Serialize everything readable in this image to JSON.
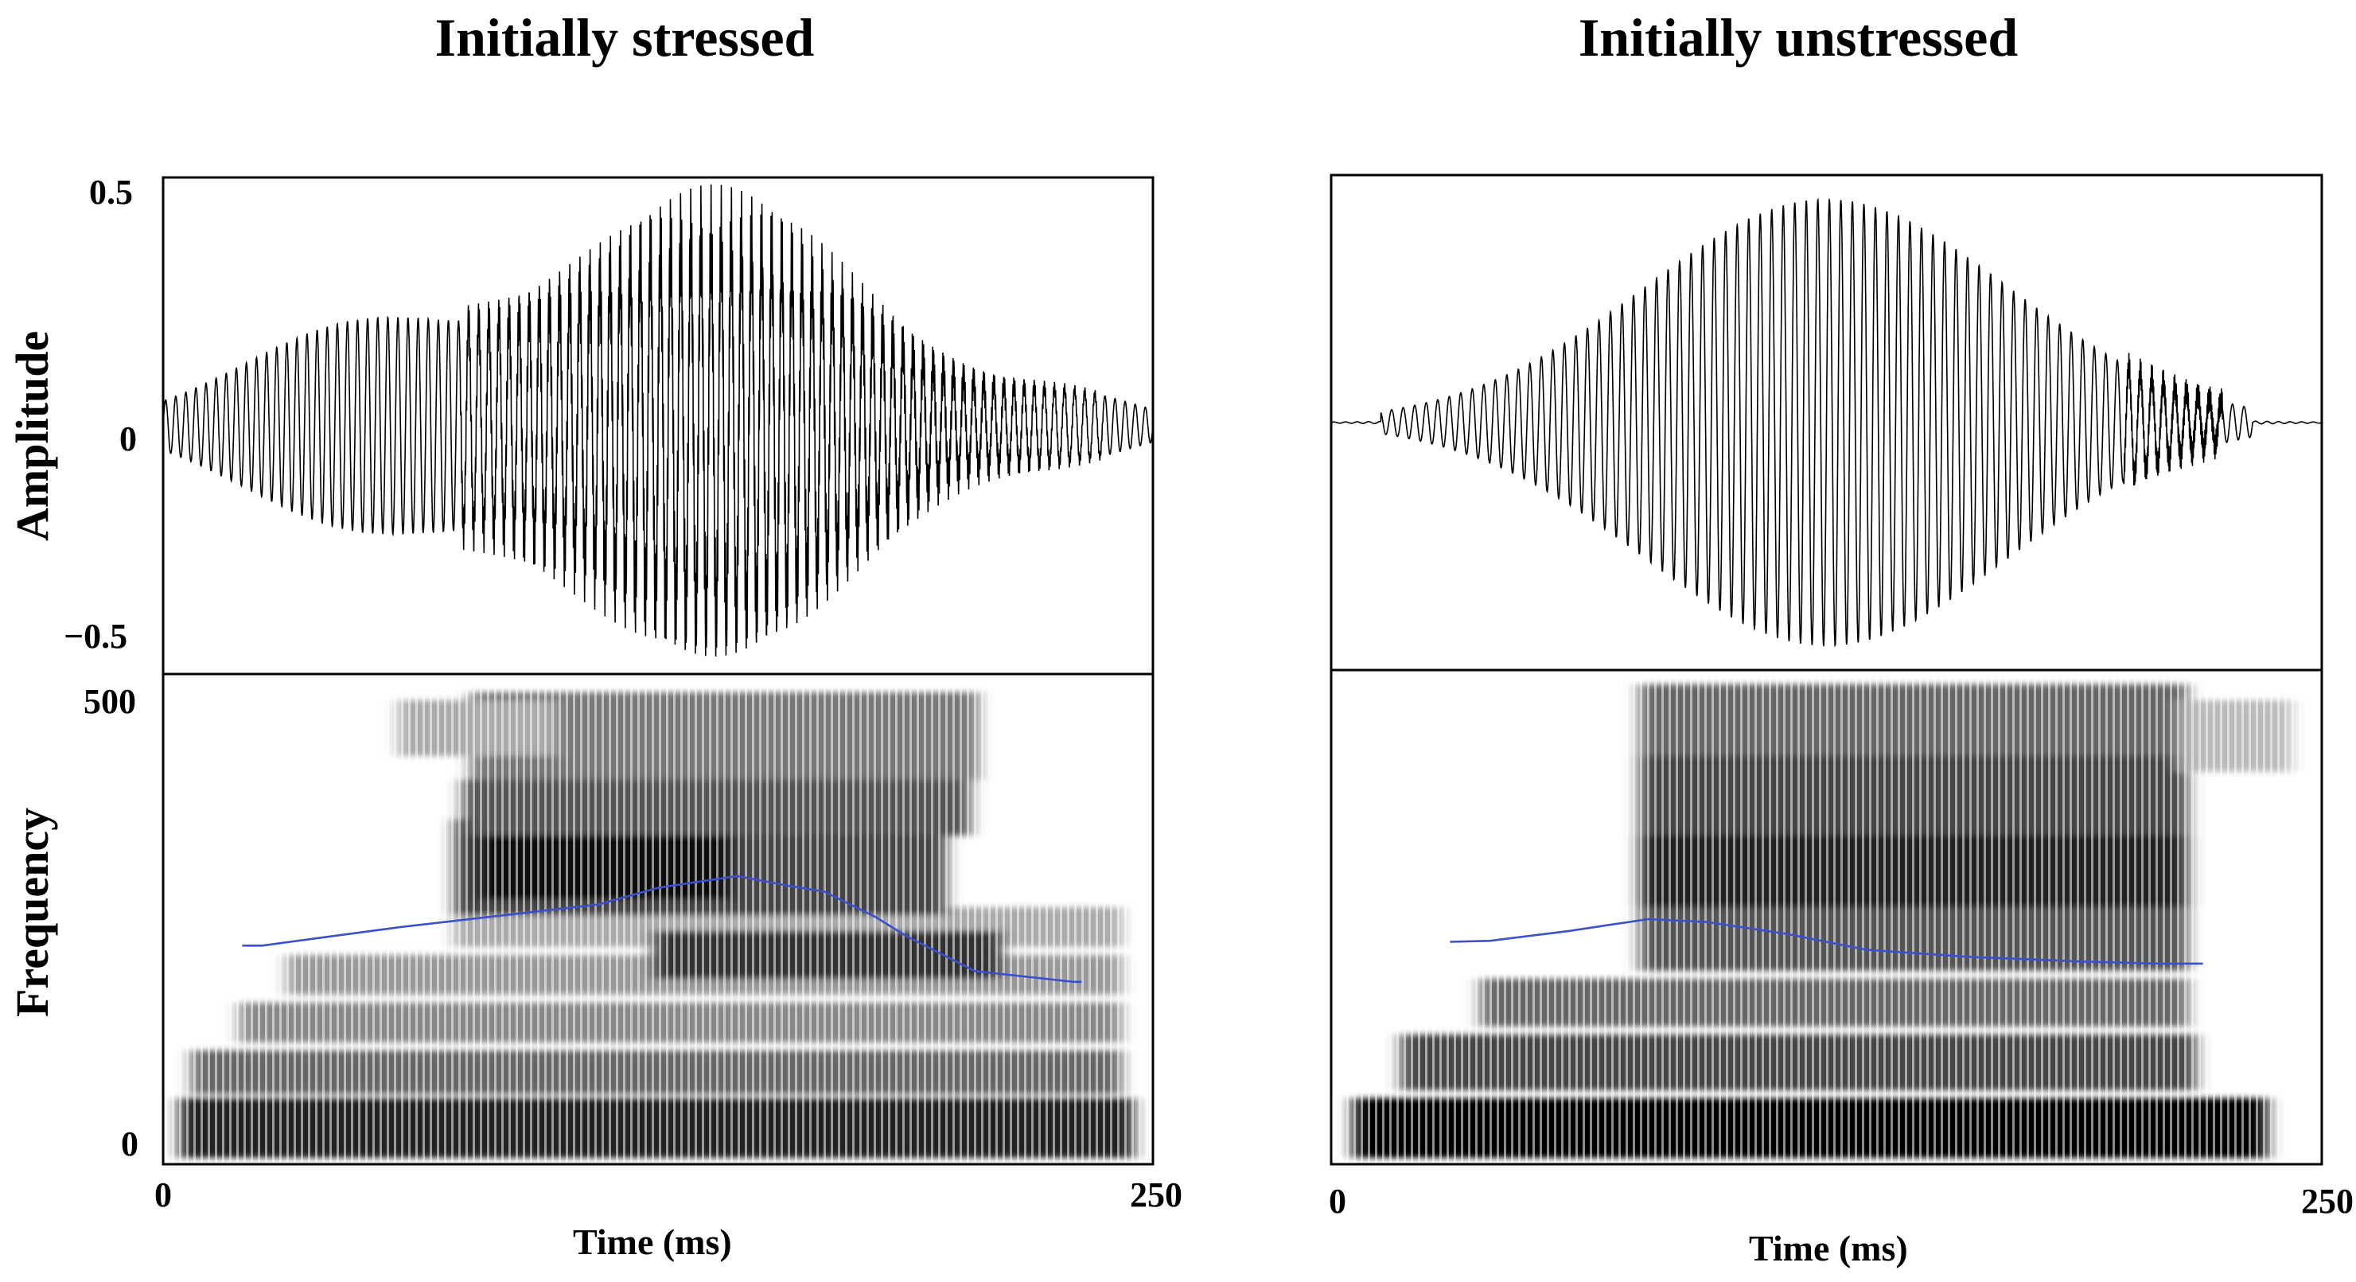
{
  "chart_data": [
    {
      "type": "line",
      "title": "Initially stressed",
      "waveform": {
        "ylabel": "Amplitude",
        "ylim": [
          -0.5,
          0.5
        ],
        "yticks": [
          "0.5",
          "0",
          "−0.5"
        ]
      },
      "spectrogram": {
        "ylabel": "Frequency",
        "ylim": [
          0,
          500
        ],
        "yticks": [
          "500",
          "0"
        ]
      },
      "xlabel": "Time (ms)",
      "xlim": [
        0,
        250
      ],
      "xticks": [
        "0",
        "250"
      ],
      "f0_contour": {
        "x": [
          20,
          25,
          60,
          110,
          125,
          145,
          158,
          167,
          180,
          188,
          205,
          230,
          232
        ],
        "y": [
          223,
          223,
          242,
          265,
          282,
          294,
          284,
          278,
          252,
          232,
          197,
          186,
          186
        ]
      }
    },
    {
      "type": "line",
      "title": "Initially unstressed",
      "waveform": {
        "ylabel": "",
        "ylim": [
          -0.5,
          0.5
        ],
        "yticks": []
      },
      "spectrogram": {
        "ylabel": "",
        "ylim": [
          0,
          500
        ],
        "yticks": []
      },
      "xlabel": "Time (ms)",
      "xlim": [
        0,
        250
      ],
      "xticks": [
        "0",
        "250"
      ],
      "f0_contour": {
        "x": [
          30,
          40,
          60,
          80,
          95,
          115,
          135,
          160,
          190,
          210,
          220
        ],
        "y": [
          225,
          226,
          236,
          248,
          245,
          233,
          217,
          210,
          205,
          203,
          203
        ]
      }
    }
  ]
}
